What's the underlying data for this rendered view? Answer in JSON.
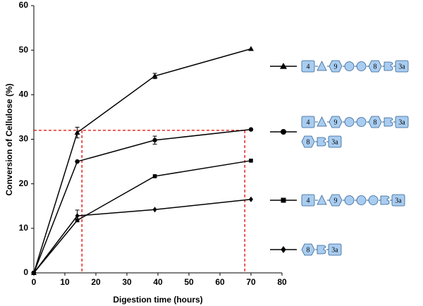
{
  "chart_data": {
    "type": "line",
    "y_label": "Conversion of Cellulose (%)",
    "x_label": "Digestion time (hours)",
    "xlim": [
      0,
      80
    ],
    "xticks": [
      0,
      10,
      20,
      30,
      40,
      50,
      60,
      70,
      80
    ],
    "ylim": [
      0,
      60
    ],
    "yticks": [
      0,
      10,
      20,
      30,
      40,
      50,
      60
    ],
    "x": [
      0,
      14,
      39,
      70
    ],
    "series": [
      {
        "marker": "triangle",
        "color": "#000000",
        "values": [
          0,
          31.5,
          44.2,
          50.3
        ],
        "errors": [
          null,
          1.2,
          0.6,
          null
        ],
        "constructs": [
          [
            "4",
            "9",
            "8",
            "3a"
          ]
        ]
      },
      {
        "marker": "circle",
        "color": "#000000",
        "values": [
          0,
          25,
          29.8,
          32.2
        ],
        "errors": [
          null,
          null,
          0.9,
          null
        ],
        "constructs": [
          [
            "4",
            "9",
            "8",
            "3a"
          ],
          [
            "8",
            "3a"
          ]
        ]
      },
      {
        "marker": "square",
        "color": "#000000",
        "values": [
          0,
          11.8,
          21.7,
          25.2
        ],
        "errors": [
          null,
          null,
          null,
          null
        ],
        "constructs": [
          [
            "4",
            "9",
            "3a"
          ]
        ]
      },
      {
        "marker": "diamond",
        "color": "#000000",
        "values": [
          0,
          12.8,
          14.2,
          16.5
        ],
        "errors": [
          null,
          1.3,
          null,
          null
        ],
        "constructs": [
          [
            "8",
            "3a"
          ]
        ]
      }
    ],
    "h_line": 32,
    "v_lines": [
      15.5,
      68
    ],
    "ref_color": "#e00000"
  }
}
